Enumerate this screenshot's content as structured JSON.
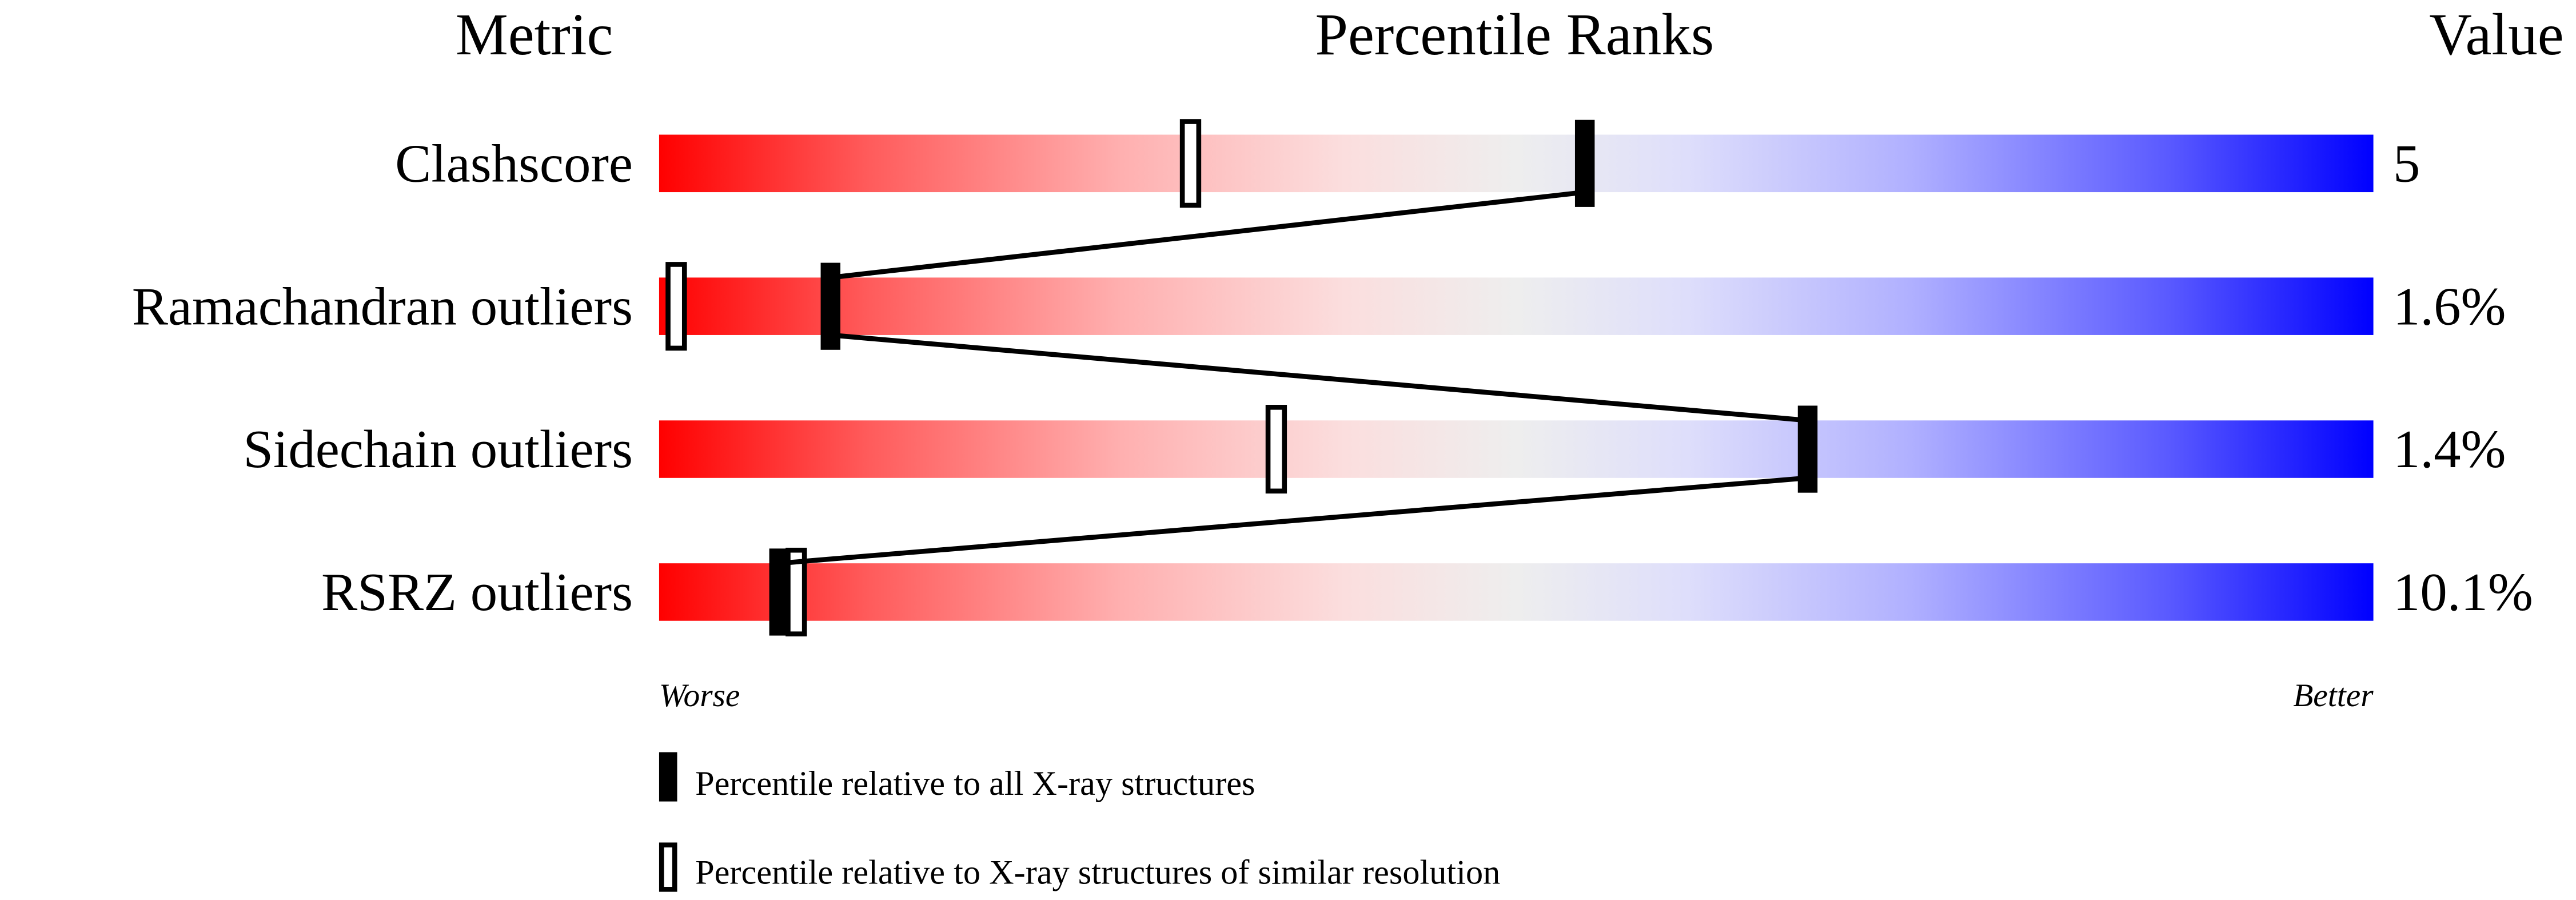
{
  "chart_data": {
    "type": "percentile-slider",
    "headers": {
      "metric": "Metric",
      "percentile": "Percentile Ranks",
      "value": "Value"
    },
    "xlim": [
      0,
      100
    ],
    "axis_labels": {
      "left": "Worse",
      "right": "Better"
    },
    "gradient_colors": [
      "#ff0000",
      "#eeeeee",
      "#0000ff"
    ],
    "metrics": [
      {
        "name": "Clashscore",
        "value": "5",
        "percentile_all": 54,
        "percentile_similar": 31
      },
      {
        "name": "Ramachandran outliers",
        "value": "1.6%",
        "percentile_all": 10,
        "percentile_similar": 1
      },
      {
        "name": "Sidechain outliers",
        "value": "1.4%",
        "percentile_all": 67,
        "percentile_similar": 36
      },
      {
        "name": "RSRZ outliers",
        "value": "10.1%",
        "percentile_all": 7,
        "percentile_similar": 8
      }
    ],
    "legend": [
      {
        "marker": "filled",
        "label": "Percentile relative to all X-ray structures"
      },
      {
        "marker": "hollow",
        "label": "Percentile relative to X-ray structures of similar resolution"
      }
    ]
  }
}
